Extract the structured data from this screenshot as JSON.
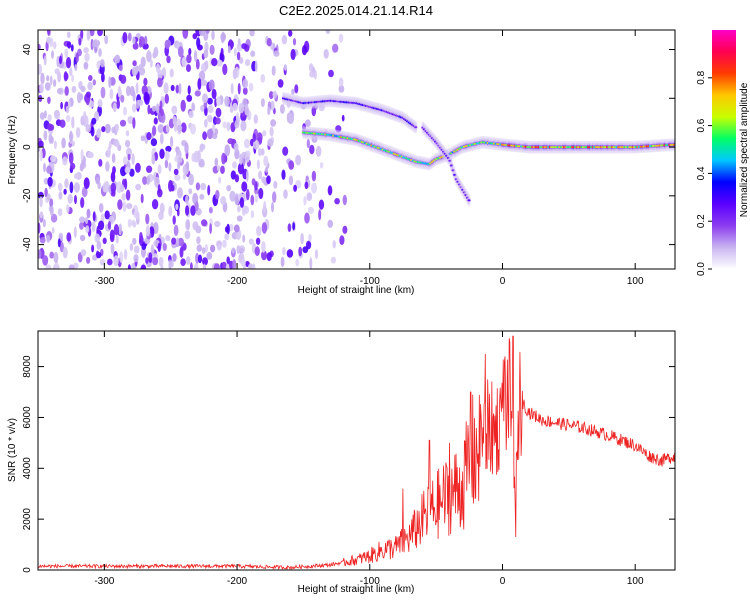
{
  "figure": {
    "title": "C2E2.2025.014.21.14.R14"
  },
  "chart_data": [
    {
      "type": "heatmap",
      "title": "C2E2.2025.014.21.14.R14",
      "xlabel": "Height of straight line (km)",
      "ylabel": "Frequency (Hz)",
      "xlim": [
        -350,
        130
      ],
      "ylim": [
        -50,
        48
      ],
      "xticks": [
        -300,
        -200,
        -100,
        0,
        100
      ],
      "yticks": [
        -40,
        -20,
        0,
        20,
        40
      ],
      "colorbar": {
        "label": "Normalized spectral amplitude",
        "range": [
          0.0,
          1.0
        ],
        "ticks": [
          0.0,
          0.2,
          0.4,
          0.6,
          0.8
        ],
        "colormap": [
          "#ffffff",
          "#c8b4f0",
          "#8c3cf0",
          "#5a00ff",
          "#0000ff",
          "#00c8ff",
          "#00ff64",
          "#c8ff00",
          "#ffc800",
          "#ff3c00",
          "#ff0050",
          "#ff00c8"
        ]
      },
      "features": [
        {
          "name": "broadband noise",
          "x_range": [
            -350,
            -115
          ],
          "y_range": [
            -50,
            48
          ],
          "amplitude": 0.18
        },
        {
          "name": "upper track",
          "points": [
            [
              -165,
              20
            ],
            [
              -150,
              18
            ],
            [
              -130,
              19
            ],
            [
              -110,
              18
            ],
            [
              -90,
              15
            ],
            [
              -75,
              12
            ],
            [
              -65,
              8
            ]
          ],
          "amplitude": 0.35
        },
        {
          "name": "lower track",
          "points": [
            [
              -150,
              6
            ],
            [
              -130,
              5
            ],
            [
              -110,
              3
            ],
            [
              -95,
              0
            ],
            [
              -80,
              -3
            ],
            [
              -65,
              -6
            ],
            [
              -55,
              -7
            ],
            [
              -50,
              -5
            ],
            [
              -40,
              -3
            ],
            [
              -30,
              0
            ],
            [
              -15,
              2
            ],
            [
              0,
              1
            ],
            [
              20,
              0
            ],
            [
              60,
              0
            ],
            [
              100,
              0
            ],
            [
              130,
              1
            ]
          ],
          "amplitude": 0.75
        },
        {
          "name": "branch",
          "points": [
            [
              -60,
              8
            ],
            [
              -50,
              2
            ],
            [
              -40,
              -5
            ],
            [
              -35,
              -13
            ],
            [
              -25,
              -22
            ]
          ],
          "amplitude": 0.3
        }
      ]
    },
    {
      "type": "line",
      "xlabel": "Height of straight line (km)",
      "ylabel": "SNR (10 * v/v)",
      "xlim": [
        -350,
        130
      ],
      "ylim": [
        0,
        9400
      ],
      "xticks": [
        -300,
        -200,
        -100,
        0,
        100
      ],
      "yticks": [
        0,
        2000,
        4000,
        6000,
        8000
      ],
      "series_color": "#ee2222",
      "envelope": {
        "x": [
          -350,
          -250,
          -200,
          -160,
          -130,
          -110,
          -100,
          -90,
          -80,
          -70,
          -60,
          -50,
          -40,
          -30,
          -25,
          -20,
          -15,
          -10,
          -5,
          0,
          5,
          8,
          10,
          12,
          15,
          20,
          30,
          40,
          60,
          80,
          100,
          110,
          120,
          130
        ],
        "y": [
          150,
          150,
          150,
          100,
          200,
          400,
          550,
          800,
          900,
          1300,
          2000,
          2500,
          3000,
          3300,
          4200,
          4800,
          5500,
          5600,
          5400,
          6500,
          6900,
          6000,
          2500,
          6500,
          6600,
          6200,
          5900,
          5800,
          5600,
          5300,
          4900,
          4500,
          4300,
          4500
        ]
      },
      "spikes": [
        {
          "x": -24,
          "y": 7000
        },
        {
          "x": -13,
          "y": 8500
        },
        {
          "x": 2,
          "y": 8400
        },
        {
          "x": 8,
          "y": 9200
        },
        {
          "x": 10,
          "y": 1300
        },
        {
          "x": -55,
          "y": 5100
        },
        {
          "x": -40,
          "y": 5000
        },
        {
          "x": -75,
          "y": 3200
        }
      ]
    }
  ]
}
